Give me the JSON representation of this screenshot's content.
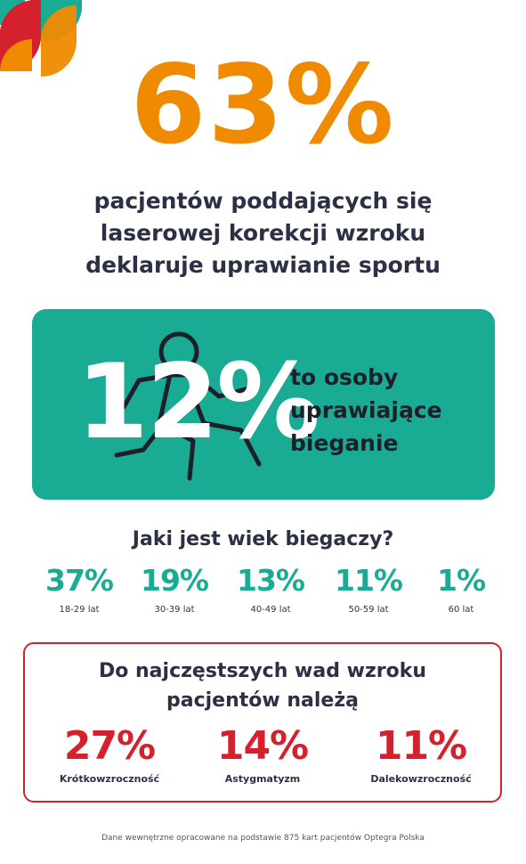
{
  "colors": {
    "orange": "#f08a00",
    "navy": "#2c3045",
    "teal": "#1aab94",
    "red": "#d5202e",
    "white": "#ffffff"
  },
  "hero": {
    "percent": "63%",
    "lines": [
      "pacjentów poddających się",
      "laserowej korekcji wzroku",
      "deklaruje uprawianie sportu"
    ]
  },
  "running": {
    "icon": "runner-icon",
    "percent": "12%",
    "lines": [
      "to osoby",
      "uprawiające",
      "bieganie"
    ]
  },
  "age": {
    "heading": "Jaki jest wiek biegaczy?",
    "stats": [
      {
        "percent": "37%",
        "label": "18-29 lat"
      },
      {
        "percent": "19%",
        "label": "30-39  lat"
      },
      {
        "percent": "13%",
        "label": "40-49  lat"
      },
      {
        "percent": "11%",
        "label": "50-59  lat"
      },
      {
        "percent": "1%",
        "label": "60  lat"
      }
    ]
  },
  "defects": {
    "heading": [
      "Do najczęstszych wad wzroku",
      "pacjentów należą"
    ],
    "items": [
      {
        "percent": "27%",
        "label": "Krótkowzroczność"
      },
      {
        "percent": "14%",
        "label": "Astygmatyzm"
      },
      {
        "percent": "11%",
        "label": "Dalekowzroczność"
      }
    ]
  },
  "footer": "Dane wewnętrzne opracowane na podstawie 875 kart pacjentów Optegra Polska"
}
